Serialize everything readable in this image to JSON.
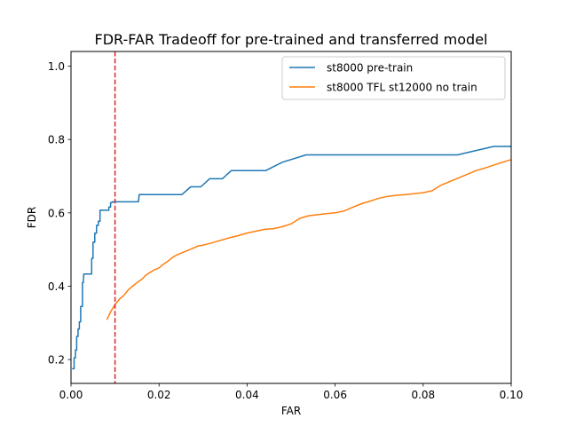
{
  "chart_data": {
    "type": "line",
    "title": "FDR-FAR Tradeoff for pre-trained and transferred model",
    "xlabel": "FAR",
    "ylabel": "FDR",
    "xlim": [
      0.0,
      0.1
    ],
    "ylim": [
      0.135,
      1.04
    ],
    "xticks": [
      0.0,
      0.02,
      0.04,
      0.06,
      0.08,
      0.1
    ],
    "xtick_labels": [
      "0.00",
      "0.02",
      "0.04",
      "0.06",
      "0.08",
      "0.10"
    ],
    "yticks": [
      0.2,
      0.4,
      0.6,
      0.8,
      1.0
    ],
    "ytick_labels": [
      "0.2",
      "0.4",
      "0.6",
      "0.8",
      "1.0"
    ],
    "grid": false,
    "legend_position": "upper right",
    "threshold_line": {
      "x": 0.01,
      "color": "#d62728",
      "style": "dashed"
    },
    "series": [
      {
        "name": "st8000 pre-train",
        "color": "#1f77b4",
        "x": [
          0.0004,
          0.0007,
          0.0007,
          0.001,
          0.001,
          0.0013,
          0.0013,
          0.0016,
          0.0016,
          0.0019,
          0.0019,
          0.0022,
          0.0022,
          0.0026,
          0.0026,
          0.0028,
          0.0029,
          0.0032,
          0.0032,
          0.0047,
          0.0047,
          0.005,
          0.005,
          0.0054,
          0.0054,
          0.0058,
          0.0058,
          0.0062,
          0.0062,
          0.0066,
          0.0066,
          0.0072,
          0.0072,
          0.0086,
          0.0086,
          0.009,
          0.009,
          0.0094,
          0.0094,
          0.0143,
          0.0153,
          0.0155,
          0.0252,
          0.0272,
          0.0272,
          0.0295,
          0.0315,
          0.0344,
          0.0364,
          0.0442,
          0.048,
          0.0534,
          0.0878,
          0.096,
          0.1
        ],
        "y": [
          0.175,
          0.175,
          0.205,
          0.205,
          0.226,
          0.226,
          0.263,
          0.263,
          0.283,
          0.283,
          0.303,
          0.303,
          0.345,
          0.345,
          0.41,
          0.41,
          0.433,
          0.433,
          0.433,
          0.433,
          0.476,
          0.476,
          0.52,
          0.52,
          0.545,
          0.545,
          0.566,
          0.566,
          0.577,
          0.577,
          0.607,
          0.607,
          0.607,
          0.607,
          0.616,
          0.616,
          0.628,
          0.628,
          0.63,
          0.63,
          0.63,
          0.65,
          0.65,
          0.671,
          0.671,
          0.671,
          0.693,
          0.693,
          0.715,
          0.715,
          0.738,
          0.758,
          0.758,
          0.781,
          0.781
        ]
      },
      {
        "name": "st8000 TFL st12000 no train",
        "color": "#ff7f0e",
        "x": [
          0.0082,
          0.009,
          0.01,
          0.011,
          0.012,
          0.013,
          0.014,
          0.015,
          0.016,
          0.017,
          0.018,
          0.019,
          0.02,
          0.021,
          0.022,
          0.023,
          0.024,
          0.025,
          0.026,
          0.027,
          0.028,
          0.029,
          0.03,
          0.032,
          0.034,
          0.036,
          0.038,
          0.04,
          0.042,
          0.044,
          0.046,
          0.048,
          0.05,
          0.052,
          0.054,
          0.056,
          0.058,
          0.06,
          0.062,
          0.064,
          0.066,
          0.068,
          0.07,
          0.072,
          0.074,
          0.076,
          0.078,
          0.08,
          0.082,
          0.084,
          0.086,
          0.088,
          0.09,
          0.092,
          0.094,
          0.096,
          0.098,
          0.1
        ],
        "y": [
          0.31,
          0.33,
          0.35,
          0.365,
          0.375,
          0.39,
          0.4,
          0.41,
          0.418,
          0.43,
          0.438,
          0.445,
          0.45,
          0.46,
          0.468,
          0.478,
          0.485,
          0.49,
          0.495,
          0.5,
          0.505,
          0.51,
          0.512,
          0.518,
          0.525,
          0.532,
          0.538,
          0.545,
          0.55,
          0.555,
          0.557,
          0.562,
          0.57,
          0.585,
          0.592,
          0.595,
          0.598,
          0.6,
          0.605,
          0.615,
          0.625,
          0.632,
          0.64,
          0.645,
          0.648,
          0.65,
          0.652,
          0.655,
          0.66,
          0.675,
          0.685,
          0.695,
          0.705,
          0.715,
          0.722,
          0.73,
          0.738,
          0.745
        ]
      }
    ]
  }
}
